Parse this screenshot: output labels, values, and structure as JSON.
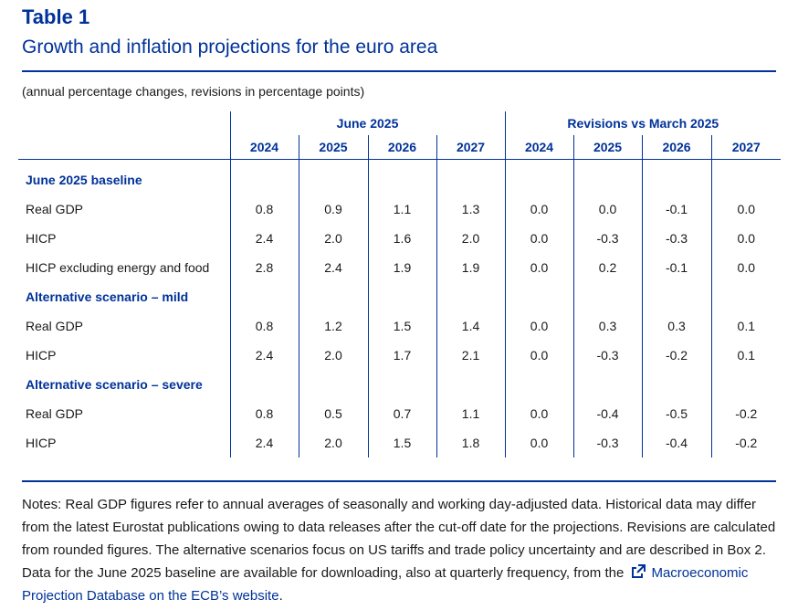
{
  "title": "Table 1",
  "subtitle": "Growth and inflation projections for the euro area",
  "units_note": "(annual percentage changes, revisions in percentage points)",
  "table": {
    "group_headers": [
      "June 2025",
      "Revisions vs March 2025"
    ],
    "years": [
      "2024",
      "2025",
      "2026",
      "2027",
      "2024",
      "2025",
      "2026",
      "2027"
    ],
    "sections": [
      {
        "title": "June 2025 baseline",
        "rows": [
          {
            "label": "Real GDP",
            "values": [
              "0.8",
              "0.9",
              "1.1",
              "1.3",
              "0.0",
              "0.0",
              "-0.1",
              "0.0"
            ]
          },
          {
            "label": "HICP",
            "values": [
              "2.4",
              "2.0",
              "1.6",
              "2.0",
              "0.0",
              "-0.3",
              "-0.3",
              "0.0"
            ]
          },
          {
            "label": "HICP excluding energy and food",
            "values": [
              "2.8",
              "2.4",
              "1.9",
              "1.9",
              "0.0",
              "0.2",
              "-0.1",
              "0.0"
            ]
          }
        ]
      },
      {
        "title": "Alternative scenario – mild",
        "rows": [
          {
            "label": "Real GDP",
            "values": [
              "0.8",
              "1.2",
              "1.5",
              "1.4",
              "0.0",
              "0.3",
              "0.3",
              "0.1"
            ]
          },
          {
            "label": "HICP",
            "values": [
              "2.4",
              "2.0",
              "1.7",
              "2.1",
              "0.0",
              "-0.3",
              "-0.2",
              "0.1"
            ]
          }
        ]
      },
      {
        "title": "Alternative scenario – severe",
        "rows": [
          {
            "label": "Real GDP",
            "values": [
              "0.8",
              "0.5",
              "0.7",
              "1.1",
              "0.0",
              "-0.4",
              "-0.5",
              "-0.2"
            ]
          },
          {
            "label": "HICP",
            "values": [
              "2.4",
              "2.0",
              "1.5",
              "1.8",
              "0.0",
              "-0.3",
              "-0.4",
              "-0.2"
            ]
          }
        ]
      }
    ]
  },
  "notes": {
    "text": "Notes: Real GDP figures refer to annual averages of seasonally and working day-adjusted data. Historical data may differ from the latest Eurostat publications owing to data releases after the cut-off date for the projections. Revisions are calculated from rounded figures. The alternative scenarios focus on US tariffs and trade policy uncertainty and are described in Box 2. Data for the June 2025 baseline are available for downloading, also at quarterly frequency, from the",
    "link_text": "Macroeconomic Projection Database on the ECB’s website",
    "end": ".",
    "link_icon": "external-link-icon"
  },
  "colors": {
    "accent": "#003299",
    "text": "#1a1a1a"
  }
}
